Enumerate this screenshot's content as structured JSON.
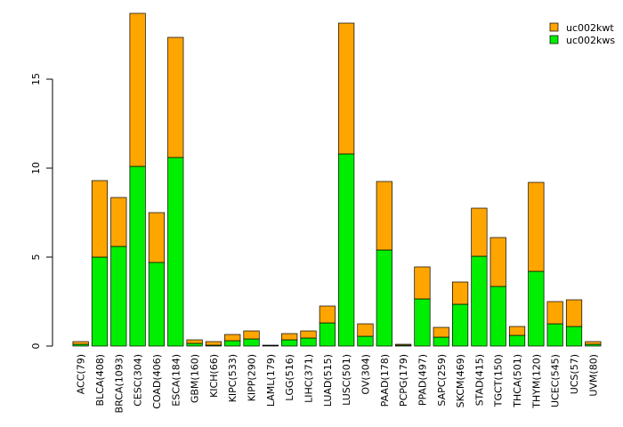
{
  "chart_data": {
    "type": "bar",
    "stacked": true,
    "categories": [
      "ACC(79)",
      "BLCA(408)",
      "BRCA(1093)",
      "CESC(304)",
      "COAD(406)",
      "ESCA(184)",
      "GBM(160)",
      "KICH(66)",
      "KIPC(533)",
      "KIPP(290)",
      "LAML(179)",
      "LGG(516)",
      "LIHC(371)",
      "LUAD(515)",
      "LUSC(501)",
      "OV(304)",
      "PAAD(178)",
      "PCPG(179)",
      "PPAD(497)",
      "SAPC(259)",
      "SKCM(469)",
      "STAD(415)",
      "TGCT(150)",
      "THCA(501)",
      "THYM(120)",
      "UCEC(545)",
      "UCS(57)",
      "UVM(80)"
    ],
    "series": [
      {
        "name": "uc002kws",
        "color": "#00ee00",
        "values": [
          0.1,
          5.0,
          5.6,
          10.1,
          4.7,
          10.6,
          0.15,
          0.05,
          0.3,
          0.4,
          0.03,
          0.35,
          0.45,
          1.3,
          10.8,
          0.55,
          5.4,
          0.05,
          2.65,
          0.5,
          2.35,
          5.05,
          3.35,
          0.6,
          4.2,
          1.25,
          1.1,
          0.1
        ]
      },
      {
        "name": "uc002kwt",
        "color": "#ffa500",
        "values": [
          0.15,
          4.3,
          2.75,
          8.6,
          2.8,
          6.75,
          0.2,
          0.2,
          0.35,
          0.45,
          0.02,
          0.35,
          0.4,
          0.95,
          7.35,
          0.7,
          3.85,
          0.05,
          1.8,
          0.55,
          1.25,
          2.7,
          2.75,
          0.5,
          5.0,
          1.25,
          1.5,
          0.15
        ]
      }
    ],
    "legend_order": [
      "uc002kwt",
      "uc002kws"
    ],
    "legend_position": "top-right",
    "ylim": [
      0,
      18.7
    ],
    "yticks": [
      0,
      5,
      10,
      15
    ],
    "title": "",
    "xlabel": "",
    "ylabel": ""
  }
}
